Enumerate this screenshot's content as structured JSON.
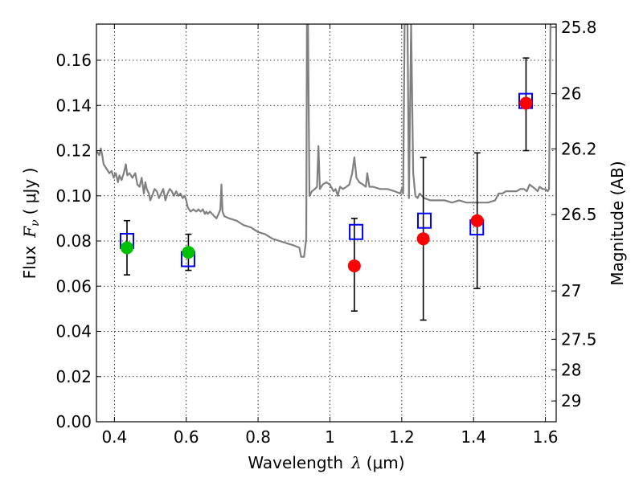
{
  "chart_data": {
    "type": "scatter",
    "xlabel_prefix": "Wavelength",
    "xlabel_symbol": "λ",
    "xlabel_unit": "(μm)",
    "ylabel_prefix": "Flux",
    "ylabel_symbol": "F",
    "ylabel_sub": "ν",
    "ylabel_unit": "( μJy )",
    "y2label": "Magnitude (AB)",
    "xlim": [
      0.35,
      1.63
    ],
    "ylim": [
      0.0,
      0.176
    ],
    "grid": true,
    "x_ticks": [
      0.4,
      0.6,
      0.8,
      1.0,
      1.2,
      1.4,
      1.6
    ],
    "x_tick_labels": [
      "0.4",
      "0.6",
      "0.8",
      "1",
      "1.2",
      "1.4",
      "1.6"
    ],
    "y_ticks": [
      0.0,
      0.02,
      0.04,
      0.06,
      0.08,
      0.1,
      0.12,
      0.14,
      0.16
    ],
    "y_tick_labels": [
      "0.00",
      "0.02",
      "0.04",
      "0.06",
      "0.08",
      "0.10",
      "0.12",
      "0.14",
      "0.16"
    ],
    "y2_ticks": [
      {
        "label": "25.8",
        "flux": 0.1746
      },
      {
        "label": "26",
        "flux": 0.1452
      },
      {
        "label": "26.2",
        "flux": 0.1208
      },
      {
        "label": "26.5",
        "flux": 0.0917
      },
      {
        "label": "27",
        "flux": 0.0579
      },
      {
        "label": "27.5",
        "flux": 0.0365
      },
      {
        "label": "28",
        "flux": 0.023
      },
      {
        "label": "29",
        "flux": 0.0092
      }
    ],
    "colors": {
      "template": "#808080",
      "model_box": "#0000ff",
      "green": "#00c000",
      "red": "#ff0000",
      "errorbar": "#000000"
    },
    "model_boxes": [
      {
        "x": 0.435,
        "y": 0.08
      },
      {
        "x": 0.605,
        "y": 0.072
      },
      {
        "x": 1.073,
        "y": 0.084
      },
      {
        "x": 1.263,
        "y": 0.089
      },
      {
        "x": 1.409,
        "y": 0.086
      },
      {
        "x": 1.545,
        "y": 0.142
      }
    ],
    "series": [
      {
        "color": "green",
        "points": [
          {
            "x": 0.435,
            "y": 0.077,
            "err_lo": 0.065,
            "err_hi": 0.089
          },
          {
            "x": 0.606,
            "y": 0.075,
            "err_lo": 0.067,
            "err_hi": 0.083
          }
        ]
      },
      {
        "color": "red",
        "points": [
          {
            "x": 1.068,
            "y": 0.069,
            "err_lo": 0.049,
            "err_hi": 0.09
          },
          {
            "x": 1.26,
            "y": 0.081,
            "err_lo": 0.045,
            "err_hi": 0.117
          },
          {
            "x": 1.41,
            "y": 0.089,
            "err_lo": 0.059,
            "err_hi": 0.119
          },
          {
            "x": 1.546,
            "y": 0.141,
            "err_lo": 0.12,
            "err_hi": 0.161
          }
        ]
      }
    ],
    "template_spectrum": [
      [
        0.35,
        0.12
      ],
      [
        0.358,
        0.118
      ],
      [
        0.362,
        0.121
      ],
      [
        0.366,
        0.118
      ],
      [
        0.37,
        0.114
      ],
      [
        0.378,
        0.112
      ],
      [
        0.386,
        0.11
      ],
      [
        0.392,
        0.111
      ],
      [
        0.398,
        0.108
      ],
      [
        0.404,
        0.11
      ],
      [
        0.41,
        0.106
      ],
      [
        0.414,
        0.109
      ],
      [
        0.42,
        0.107
      ],
      [
        0.426,
        0.11
      ],
      [
        0.432,
        0.114
      ],
      [
        0.436,
        0.109
      ],
      [
        0.442,
        0.11
      ],
      [
        0.45,
        0.108
      ],
      [
        0.458,
        0.11
      ],
      [
        0.464,
        0.105
      ],
      [
        0.47,
        0.104
      ],
      [
        0.476,
        0.108
      ],
      [
        0.482,
        0.101
      ],
      [
        0.486,
        0.106
      ],
      [
        0.49,
        0.103
      ],
      [
        0.496,
        0.101
      ],
      [
        0.5,
        0.098
      ],
      [
        0.505,
        0.1
      ],
      [
        0.512,
        0.103
      ],
      [
        0.518,
        0.102
      ],
      [
        0.524,
        0.099
      ],
      [
        0.53,
        0.101
      ],
      [
        0.536,
        0.103
      ],
      [
        0.542,
        0.098
      ],
      [
        0.548,
        0.101
      ],
      [
        0.554,
        0.103
      ],
      [
        0.56,
        0.102
      ],
      [
        0.566,
        0.1
      ],
      [
        0.572,
        0.102
      ],
      [
        0.578,
        0.1
      ],
      [
        0.584,
        0.101
      ],
      [
        0.59,
        0.099
      ],
      [
        0.596,
        0.1
      ],
      [
        0.6,
        0.098
      ],
      [
        0.604,
        0.095
      ],
      [
        0.612,
        0.093
      ],
      [
        0.62,
        0.094
      ],
      [
        0.628,
        0.093
      ],
      [
        0.634,
        0.094
      ],
      [
        0.64,
        0.093
      ],
      [
        0.646,
        0.094
      ],
      [
        0.652,
        0.092
      ],
      [
        0.656,
        0.093
      ],
      [
        0.66,
        0.092
      ],
      [
        0.666,
        0.093
      ],
      [
        0.672,
        0.092
      ],
      [
        0.678,
        0.091
      ],
      [
        0.684,
        0.09
      ],
      [
        0.69,
        0.092
      ],
      [
        0.695,
        0.094
      ],
      [
        0.698,
        0.105
      ],
      [
        0.701,
        0.093
      ],
      [
        0.706,
        0.091
      ],
      [
        0.72,
        0.09
      ],
      [
        0.74,
        0.089
      ],
      [
        0.76,
        0.087
      ],
      [
        0.78,
        0.086
      ],
      [
        0.8,
        0.084
      ],
      [
        0.82,
        0.083
      ],
      [
        0.84,
        0.081
      ],
      [
        0.86,
        0.08
      ],
      [
        0.88,
        0.079
      ],
      [
        0.9,
        0.078
      ],
      [
        0.915,
        0.077
      ],
      [
        0.92,
        0.073
      ],
      [
        0.928,
        0.073
      ],
      [
        0.934,
        0.081
      ],
      [
        0.936,
        0.176
      ],
      [
        0.939,
        0.176
      ],
      [
        0.943,
        0.1
      ],
      [
        0.95,
        0.102
      ],
      [
        0.958,
        0.103
      ],
      [
        0.964,
        0.104
      ],
      [
        0.968,
        0.122
      ],
      [
        0.972,
        0.103
      ],
      [
        0.98,
        0.105
      ],
      [
        0.99,
        0.106
      ],
      [
        1.0,
        0.105
      ],
      [
        1.01,
        0.102
      ],
      [
        1.016,
        0.103
      ],
      [
        1.022,
        0.1
      ],
      [
        1.028,
        0.104
      ],
      [
        1.036,
        0.103
      ],
      [
        1.046,
        0.104
      ],
      [
        1.054,
        0.105
      ],
      [
        1.062,
        0.11
      ],
      [
        1.068,
        0.117
      ],
      [
        1.074,
        0.108
      ],
      [
        1.082,
        0.106
      ],
      [
        1.092,
        0.105
      ],
      [
        1.1,
        0.104
      ],
      [
        1.104,
        0.11
      ],
      [
        1.11,
        0.104
      ],
      [
        1.12,
        0.104
      ],
      [
        1.14,
        0.103
      ],
      [
        1.16,
        0.103
      ],
      [
        1.18,
        0.102
      ],
      [
        1.196,
        0.101
      ],
      [
        1.2,
        0.103
      ],
      [
        1.204,
        0.101
      ],
      [
        1.208,
        0.176
      ],
      [
        1.216,
        0.176
      ],
      [
        1.22,
        0.099
      ],
      [
        1.226,
        0.176
      ],
      [
        1.232,
        0.11
      ],
      [
        1.238,
        0.1
      ],
      [
        1.244,
        0.099
      ],
      [
        1.25,
        0.101
      ],
      [
        1.262,
        0.099
      ],
      [
        1.28,
        0.098
      ],
      [
        1.3,
        0.098
      ],
      [
        1.32,
        0.098
      ],
      [
        1.34,
        0.097
      ],
      [
        1.36,
        0.098
      ],
      [
        1.38,
        0.097
      ],
      [
        1.4,
        0.097
      ],
      [
        1.42,
        0.097
      ],
      [
        1.44,
        0.097
      ],
      [
        1.46,
        0.098
      ],
      [
        1.47,
        0.101
      ],
      [
        1.48,
        0.101
      ],
      [
        1.49,
        0.102
      ],
      [
        1.5,
        0.102
      ],
      [
        1.51,
        0.102
      ],
      [
        1.52,
        0.102
      ],
      [
        1.53,
        0.103
      ],
      [
        1.54,
        0.103
      ],
      [
        1.548,
        0.102
      ],
      [
        1.556,
        0.105
      ],
      [
        1.564,
        0.104
      ],
      [
        1.572,
        0.103
      ],
      [
        1.578,
        0.102
      ],
      [
        1.584,
        0.104
      ],
      [
        1.592,
        0.103
      ],
      [
        1.6,
        0.103
      ],
      [
        1.606,
        0.102
      ],
      [
        1.61,
        0.103
      ],
      [
        1.614,
        0.176
      ]
    ]
  }
}
